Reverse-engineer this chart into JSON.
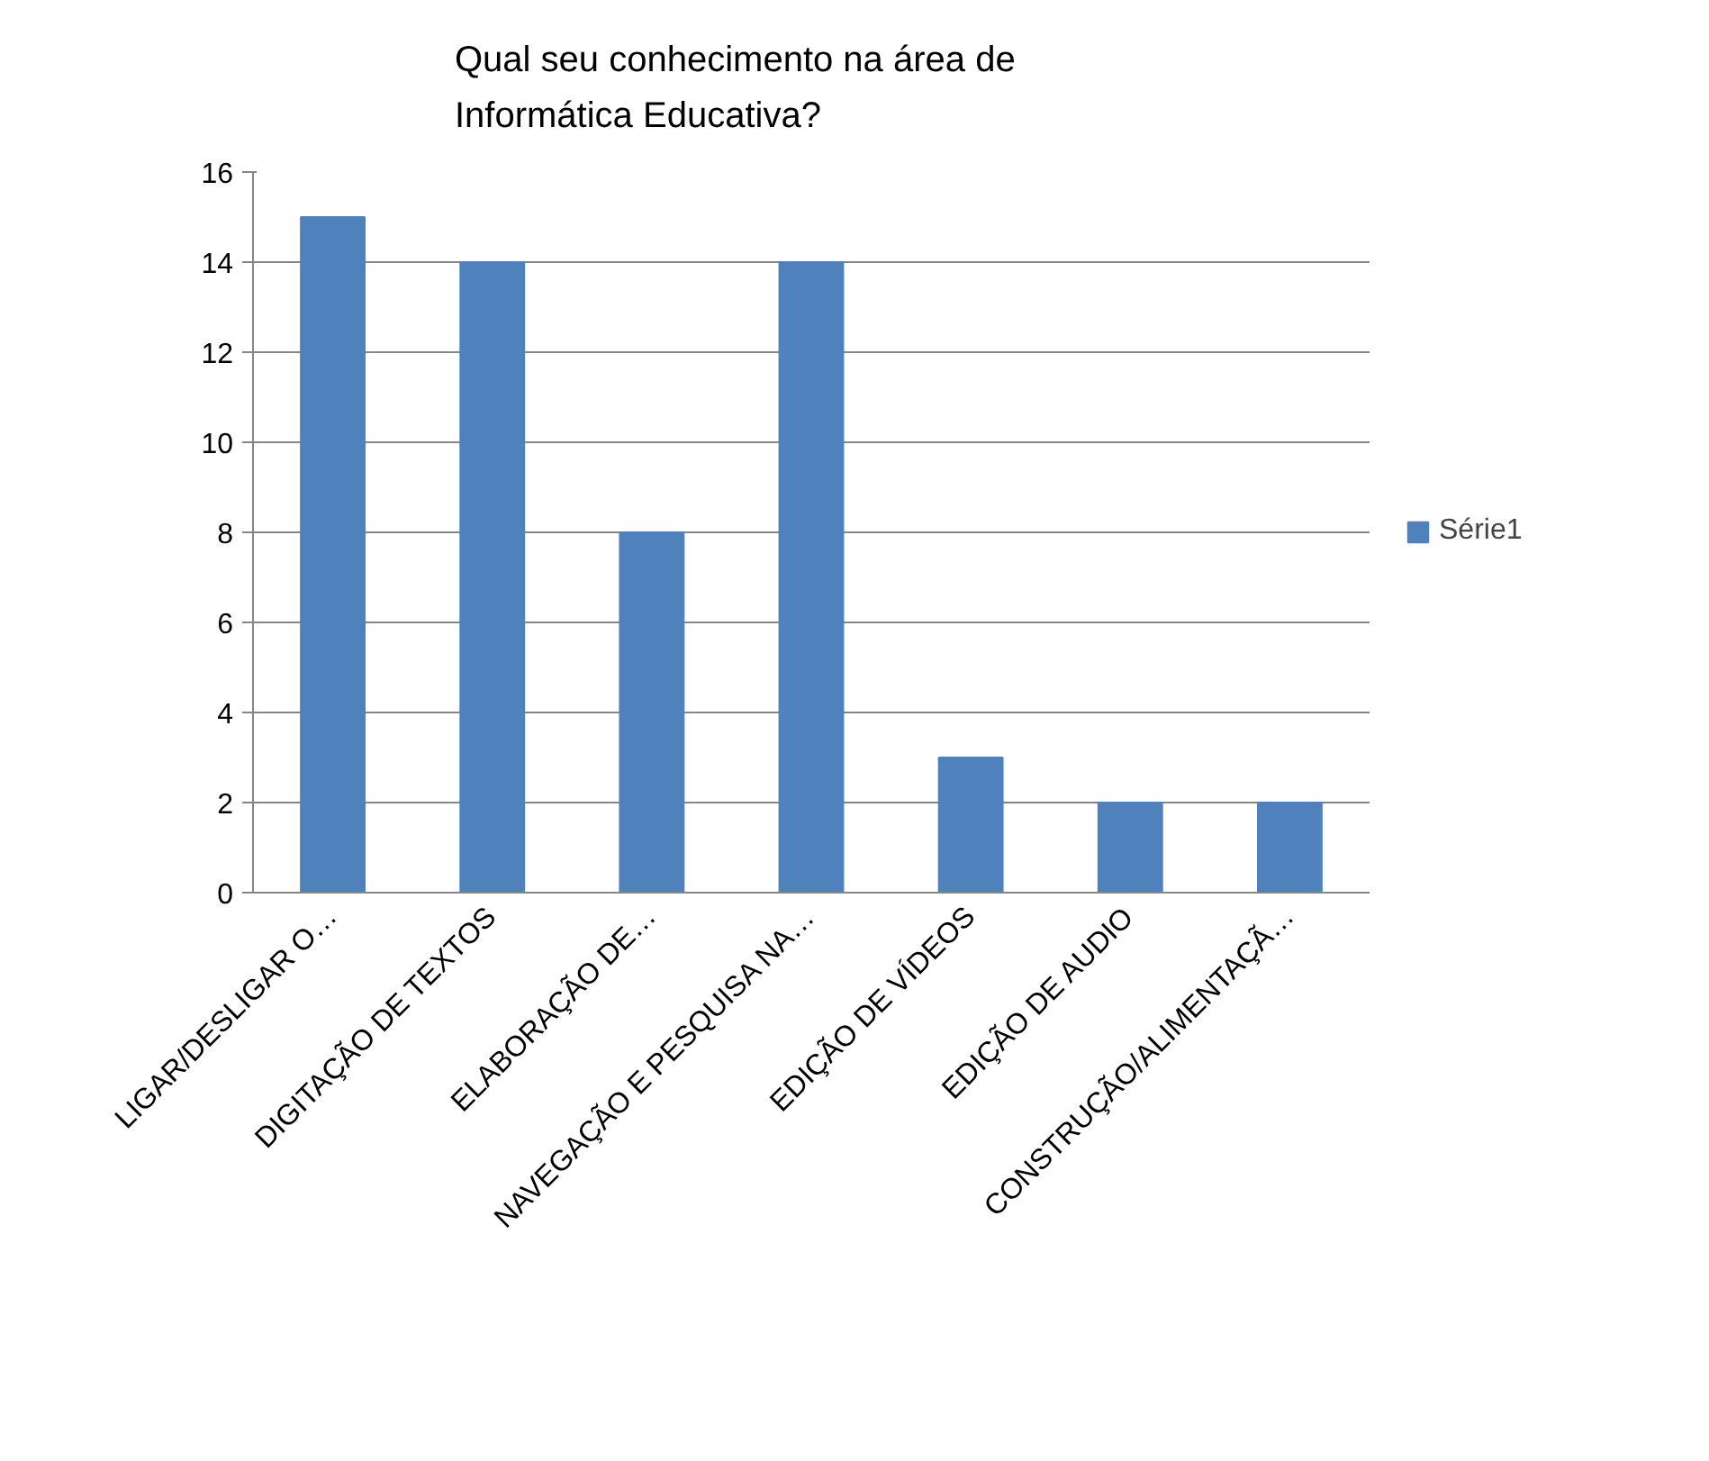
{
  "chart_data": {
    "type": "bar",
    "title": "Qual seu conhecimento na área de Informática Educativa?",
    "categories": [
      "LIGAR/DESLIGAR O…",
      "DIGITAÇÃO DE TEXTOS",
      "ELABORAÇÃO DE…",
      "NAVEGAÇÃO E PESQUISA NA…",
      "EDIÇÃO DE VÍDEOS",
      "EDIÇÃO DE AUDIO",
      "CONSTRUÇÃO/ALIMENTAÇÃ…"
    ],
    "series": [
      {
        "name": "Série1",
        "color": "#4f81bd",
        "values": [
          15,
          14,
          8,
          14,
          3,
          2,
          2
        ]
      }
    ],
    "ylim": [
      0,
      16
    ],
    "yticks": [
      0,
      2,
      4,
      6,
      8,
      10,
      12,
      14,
      16
    ],
    "grid": "y",
    "legend": "right"
  }
}
